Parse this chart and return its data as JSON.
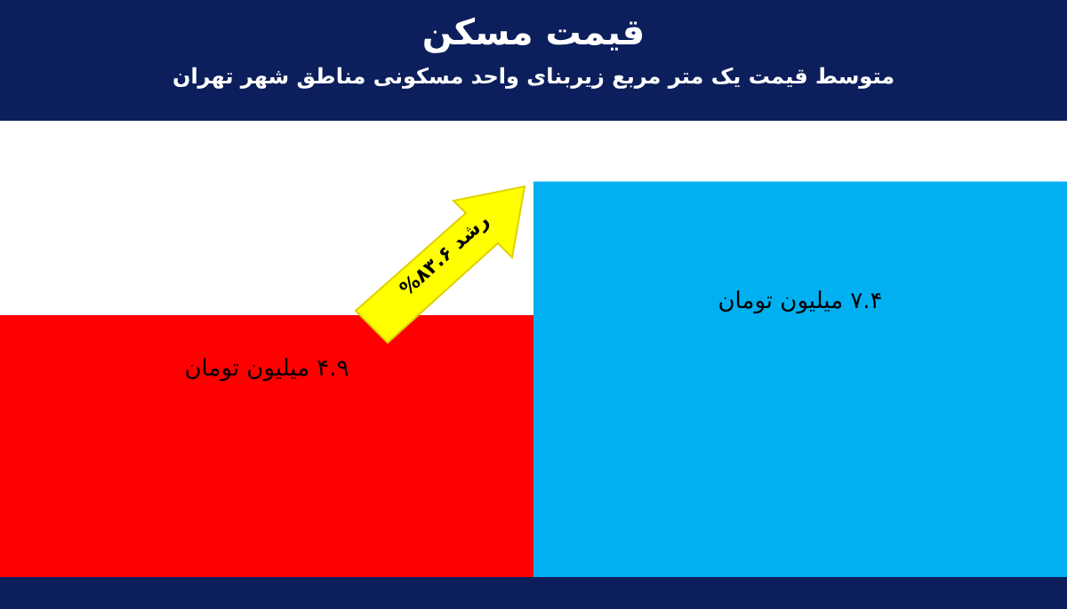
{
  "chart_data": {
    "type": "bar",
    "title": "قیمت مسکن",
    "subtitle": "متوسط قیمت یک متر مربع زیربنای واحد مسکونی مناطق شهر تهران",
    "categories": [
      null,
      null
    ],
    "values": [
      4.9,
      7.4
    ],
    "colors": [
      "#ff0000",
      "#00b0f0"
    ],
    "value_labels": [
      "۴.۹ میلیون تومان",
      "۷.۴ میلیون تومان"
    ],
    "annotations": [
      "رشد ۸۳.۶%"
    ],
    "tick_labels": false
  }
}
